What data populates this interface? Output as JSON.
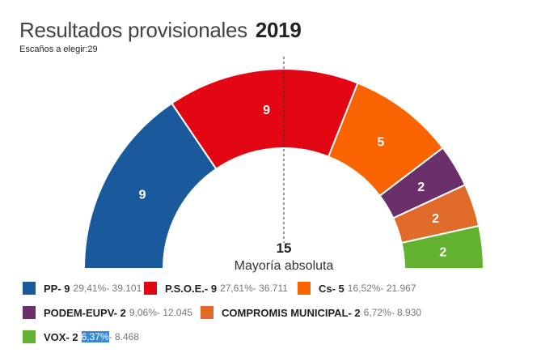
{
  "chart_data": {
    "type": "pie",
    "title": "Resultados provisionales",
    "year": "2019",
    "subtitle_label": "Escaños a elegir:",
    "total_seats": 29,
    "majority": {
      "value": "15",
      "label": "Mayoría absoluta"
    },
    "series": [
      {
        "name": "PP",
        "seats": 9,
        "pct": "29,41%",
        "votes": "39.101",
        "color": "#1a5a9c"
      },
      {
        "name": "P.S.O.E.",
        "seats": 9,
        "pct": "27,61%",
        "votes": "36.711",
        "color": "#e30613"
      },
      {
        "name": "Cs",
        "seats": 5,
        "pct": "16,52%",
        "votes": "21.967",
        "color": "#fa6400"
      },
      {
        "name": "PODEM-EUPV",
        "seats": 2,
        "pct": "9,06%",
        "votes": "12.045",
        "color": "#6b2f6b"
      },
      {
        "name": "COMPROMIS MUNICIPAL",
        "seats": 2,
        "pct": "6,72%",
        "votes": "8.930",
        "color": "#e06a2a"
      },
      {
        "name": "VOX",
        "seats": 2,
        "pct": "6,37%",
        "votes": "8.468",
        "color": "#62b22f"
      }
    ]
  }
}
